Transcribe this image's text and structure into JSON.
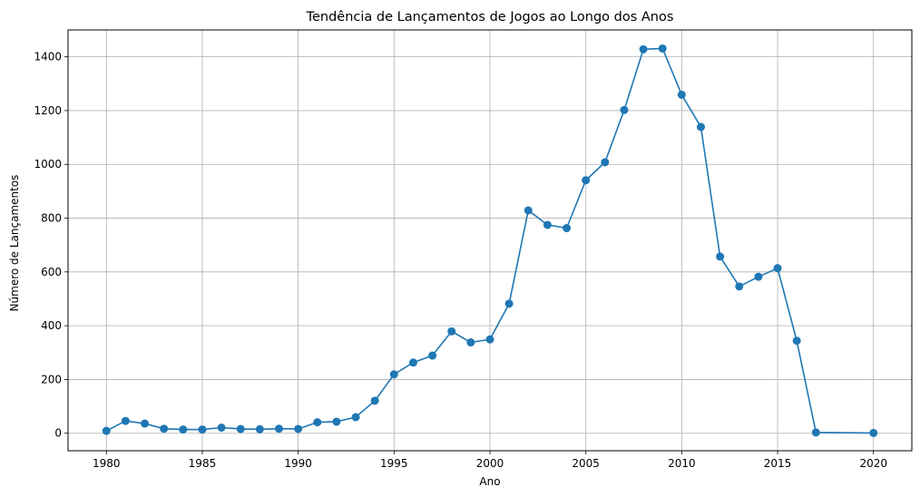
{
  "chart_data": {
    "type": "line",
    "title": "Tendência de Lançamentos de Jogos ao Longo dos Anos",
    "xlabel": "Ano",
    "ylabel": "Número de Lançamentos",
    "xlim": [
      1978,
      2022
    ],
    "ylim": [
      -65,
      1500
    ],
    "x_ticks": [
      1980,
      1985,
      1990,
      1995,
      2000,
      2005,
      2010,
      2015,
      2020
    ],
    "y_ticks": [
      0,
      200,
      400,
      600,
      800,
      1000,
      1200,
      1400
    ],
    "grid": true,
    "series": [
      {
        "color": "#1f77b4",
        "marker": "circle",
        "x": [
          1980,
          1981,
          1982,
          1983,
          1984,
          1985,
          1986,
          1987,
          1988,
          1989,
          1990,
          1991,
          1992,
          1993,
          1994,
          1995,
          1996,
          1997,
          1998,
          1999,
          2000,
          2001,
          2002,
          2003,
          2004,
          2005,
          2006,
          2007,
          2008,
          2009,
          2010,
          2011,
          2012,
          2013,
          2014,
          2015,
          2016,
          2017,
          2020
        ],
        "y": [
          9,
          46,
          36,
          17,
          14,
          14,
          21,
          16,
          15,
          17,
          16,
          41,
          43,
          60,
          121,
          219,
          263,
          289,
          379,
          338,
          349,
          482,
          829,
          775,
          763,
          941,
          1008,
          1202,
          1428,
          1431,
          1259,
          1139,
          657,
          546,
          582,
          614,
          344,
          3,
          1
        ]
      }
    ]
  }
}
